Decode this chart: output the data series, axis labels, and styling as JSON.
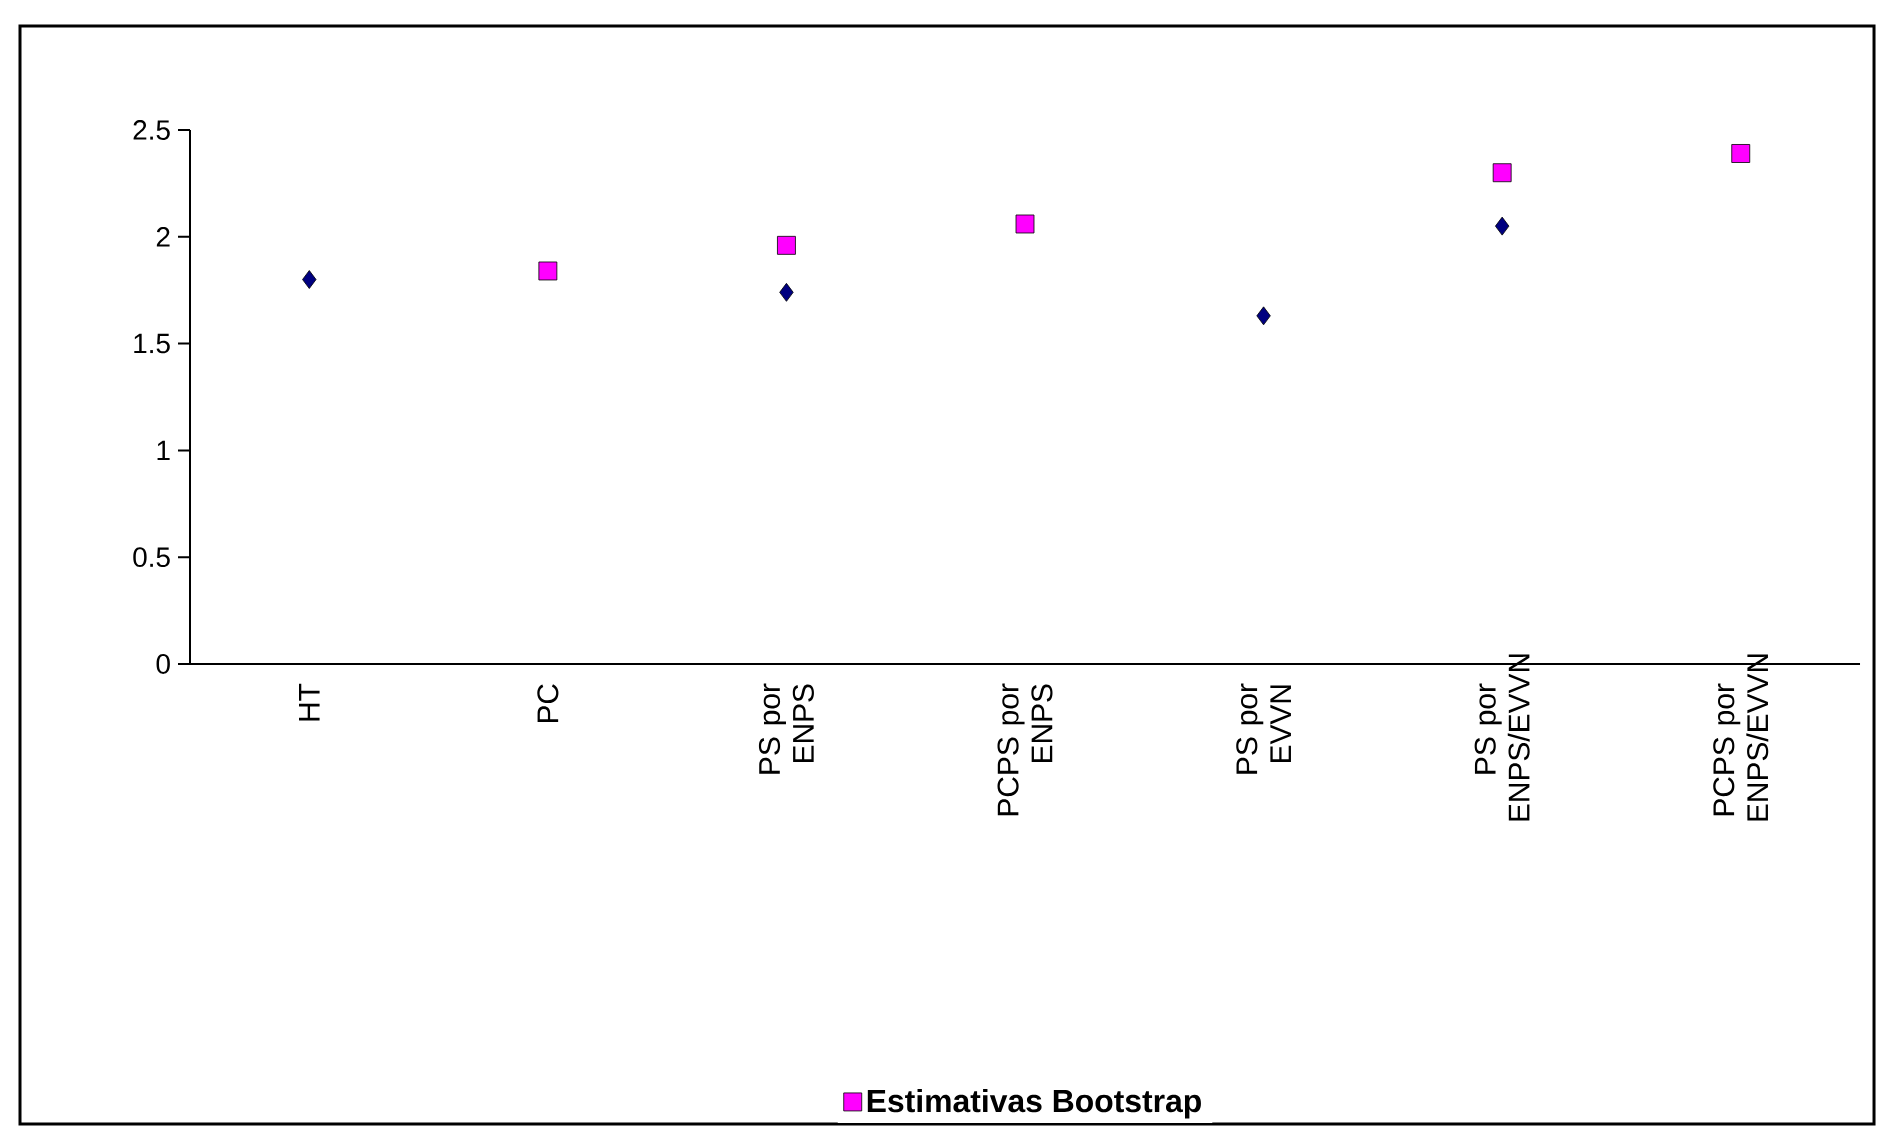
{
  "chart_data": {
    "type": "scatter",
    "categories": [
      "HT",
      "PC",
      "PS por ENPS",
      "PCPS por ENPS",
      "PS por EVVN",
      "PS por ENPS/EVVN",
      "PCPS por ENPS/EVVN"
    ],
    "series": [
      {
        "color": "#000080",
        "marker": "diamond",
        "values": [
          1.8,
          null,
          1.74,
          null,
          1.63,
          2.05,
          null
        ]
      },
      {
        "name": "Estimativas Bootstrap",
        "color": "#ff00ff",
        "marker": "square",
        "values": [
          null,
          1.84,
          1.96,
          2.06,
          null,
          2.3,
          2.39
        ]
      }
    ],
    "ylim": [
      0,
      2.5
    ],
    "yticks": [
      0,
      0.5,
      1,
      1.5,
      2,
      2.5
    ],
    "grid": false,
    "legend": "bottom"
  }
}
